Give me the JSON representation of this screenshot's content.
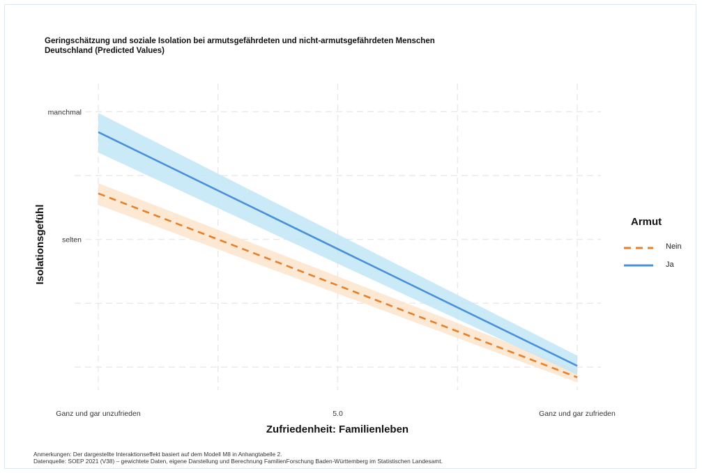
{
  "chart_data": {
    "type": "line",
    "title_lines": [
      "Geringschätzung und soziale Isolation bei armutsgefährdeten und nicht-armutsgefährdeten Menschen",
      "Deutschland (Predicted Values)"
    ],
    "xlabel": "Zufriedenheit: Familienleben",
    "ylabel": "Isolationsgefühl",
    "xlim": [
      0,
      10
    ],
    "ylim": [
      0.82,
      3.22
    ],
    "x_ticks": [
      {
        "value": 0,
        "label": "Ganz und gar unzufrieden"
      },
      {
        "value": 5,
        "label": "5.0"
      },
      {
        "value": 10,
        "label": "Ganz und gar zufrieden"
      }
    ],
    "y_ticks": [
      {
        "value": 2,
        "label": "selten"
      },
      {
        "value": 3,
        "label": "manchmal"
      }
    ],
    "legend": {
      "title": "Armut",
      "position": "right"
    },
    "series": [
      {
        "name": "Nein",
        "color": "#e8802a",
        "band_color": "#fde4cc",
        "dash": "dashed",
        "x": [
          0,
          10
        ],
        "y": [
          2.36,
          0.92
        ],
        "lower": [
          2.27,
          0.88
        ],
        "upper": [
          2.44,
          0.98
        ]
      },
      {
        "name": "Ja",
        "color": "#4a90d9",
        "band_color": "#c2e6f7",
        "dash": "solid",
        "x": [
          0,
          10
        ],
        "y": [
          2.84,
          1.01
        ],
        "lower": [
          2.68,
          0.94
        ],
        "upper": [
          2.99,
          1.09
        ]
      }
    ]
  },
  "notes": [
    "Anmerkungen: Der dargestellte Interaktionseffekt basiert auf dem Modell M8 in Anhangtabelle 2.",
    "Datenquelle: SOEP 2021 (V38) – gewichtete Daten, eigene Darstellung und Berechnung FamilienForschung Baden-Württemberg im Statistischen Landesamt."
  ]
}
